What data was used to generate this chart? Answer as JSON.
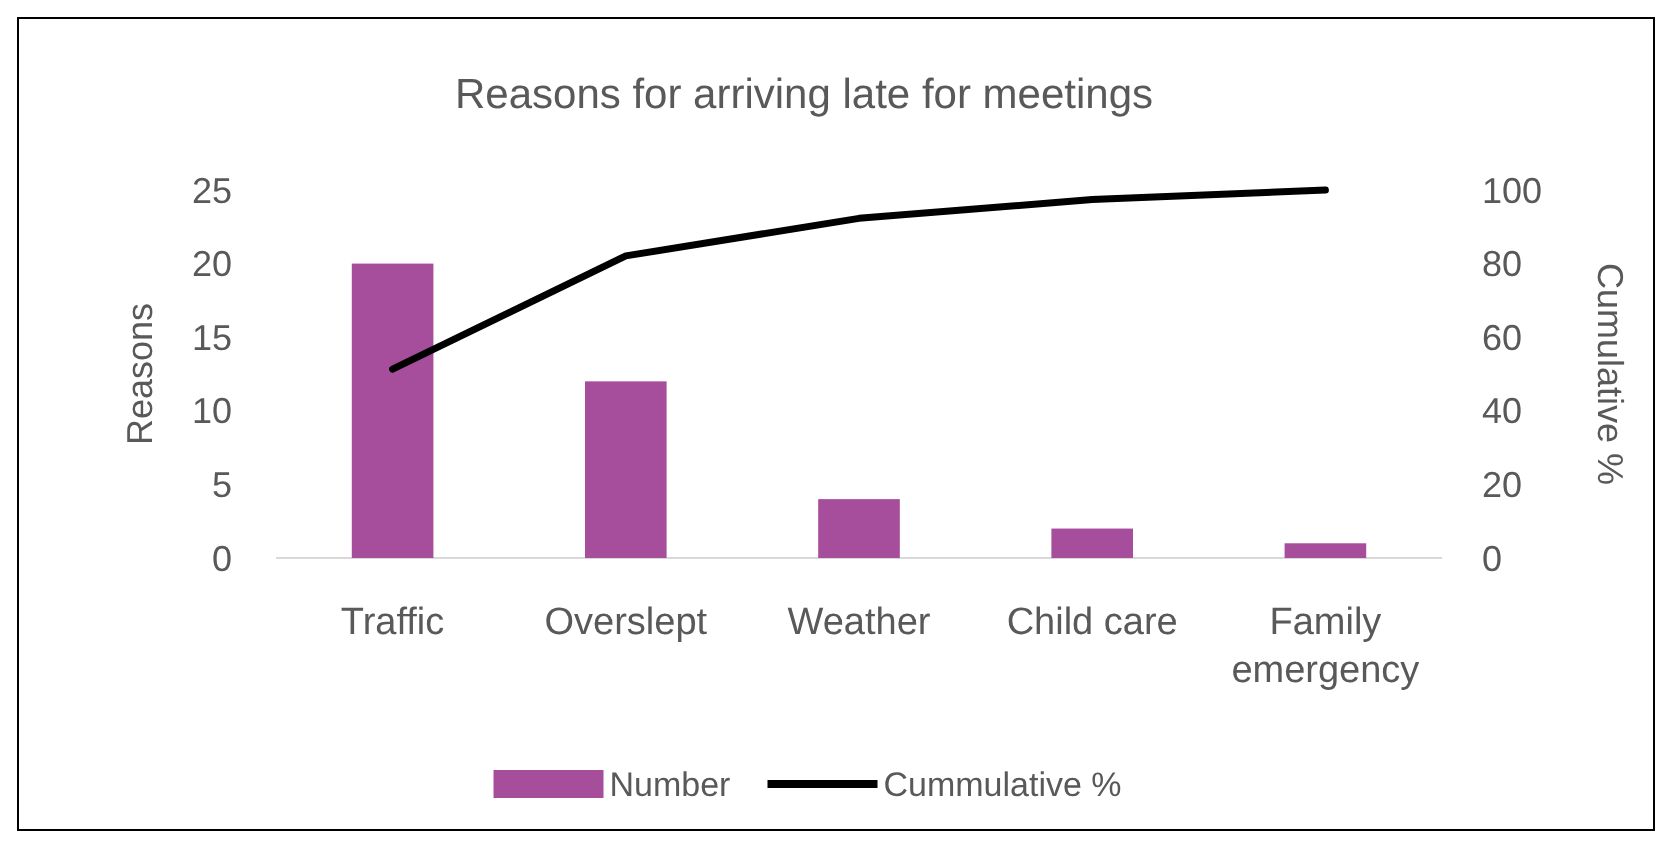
{
  "chart_data": {
    "type": "bar",
    "title": "Reasons for arriving late for meetings",
    "ylabel": "Reasons",
    "y2label": "Cumulative %",
    "categories": [
      "Traffic",
      "Overslept",
      "Weather",
      "Child care",
      "Family emergency"
    ],
    "series": [
      {
        "name": "Number",
        "color": "#a64d9c",
        "values": [
          20,
          12,
          4,
          2,
          1
        ]
      },
      {
        "name": "Cummulative %",
        "type": "line",
        "axis": "y2",
        "color": "#000000",
        "values": [
          51.3,
          82.1,
          92.3,
          97.4,
          100
        ]
      }
    ],
    "ylim": [
      0,
      25
    ],
    "yticks": [
      0,
      5,
      10,
      15,
      20,
      25
    ],
    "y2lim": [
      0,
      100
    ],
    "y2ticks": [
      0,
      20,
      40,
      60,
      80,
      100
    ],
    "grid": false,
    "legend": "bottom",
    "marker": "none",
    "line_style": "solid"
  }
}
